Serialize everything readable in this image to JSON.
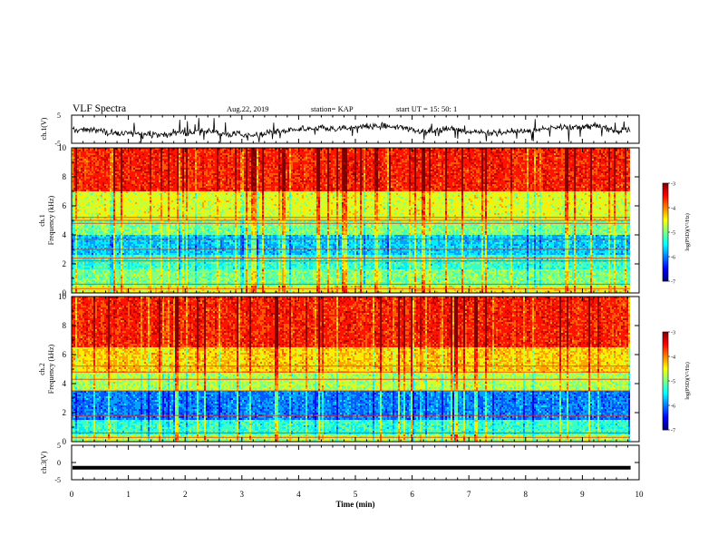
{
  "header": {
    "title": "VLF Spectra",
    "date": "Aug.22, 2019",
    "station": "station= KAP",
    "start": "start  UT =   15: 50: 1"
  },
  "chart_data": [
    {
      "type": "line",
      "name": "ch1-waveform",
      "ylabel": "ch.1(V)",
      "ylim": [
        -5,
        5
      ],
      "y_ticks": [
        "5",
        "-5"
      ],
      "xlim": [
        0,
        10
      ],
      "data_end_min": 9.85
    },
    {
      "type": "heatmap",
      "name": "ch1-spectrogram",
      "ylabel": "ch.1\nFrequency (kHz)",
      "ylim": [
        0,
        10
      ],
      "y_ticks": [
        "0",
        "2",
        "4",
        "6",
        "8",
        "10"
      ],
      "xlim": [
        0,
        10
      ],
      "colorbar": {
        "label": "log(PSD)(V²/Hz)",
        "range": [
          -7,
          -3
        ],
        "ticks": [
          "-3",
          "-4",
          "-5",
          "-6",
          "-7"
        ],
        "colormap": "jet"
      },
      "bands": [
        {
          "from_khz": 7.0,
          "to_khz": 10.0,
          "level": -3.6
        },
        {
          "from_khz": 5.0,
          "to_khz": 7.0,
          "level": -4.6
        },
        {
          "from_khz": 4.0,
          "to_khz": 5.0,
          "level": -5.0
        },
        {
          "from_khz": 2.6,
          "to_khz": 4.0,
          "level": -5.7
        },
        {
          "from_khz": 1.6,
          "to_khz": 2.6,
          "level": -5.3
        },
        {
          "from_khz": 0.5,
          "to_khz": 1.6,
          "level": -5.0
        },
        {
          "from_khz": 0.0,
          "to_khz": 0.5,
          "level": -4.5
        }
      ],
      "tones_khz": [
        0.3,
        0.6,
        2.2,
        2.4,
        3.0,
        3.7,
        4.8,
        5.0,
        5.2
      ]
    },
    {
      "type": "heatmap",
      "name": "ch2-spectrogram",
      "ylabel": "ch.2\nFrequency (kHz)",
      "ylim": [
        0,
        10
      ],
      "y_ticks": [
        "0",
        "2",
        "4",
        "6",
        "8",
        "10"
      ],
      "xlim": [
        0,
        10
      ],
      "colorbar": {
        "label": "log(PSD)(V²/Hz)",
        "range": [
          -7,
          -3
        ],
        "ticks": [
          "-3",
          "-4",
          "-5",
          "-6",
          "-7"
        ],
        "colormap": "jet"
      },
      "bands": [
        {
          "from_khz": 6.5,
          "to_khz": 10.0,
          "level": -3.6
        },
        {
          "from_khz": 4.8,
          "to_khz": 6.5,
          "level": -4.3
        },
        {
          "from_khz": 3.5,
          "to_khz": 4.8,
          "level": -4.8
        },
        {
          "from_khz": 1.5,
          "to_khz": 3.5,
          "level": -6.0
        },
        {
          "from_khz": 0.5,
          "to_khz": 1.5,
          "level": -5.3
        },
        {
          "from_khz": 0.0,
          "to_khz": 0.5,
          "level": -4.8
        }
      ],
      "tones_khz": [
        0.3,
        0.6,
        1.8,
        3.5,
        4.3,
        4.8,
        5.2
      ]
    },
    {
      "type": "line",
      "name": "ch3-waveform",
      "ylabel": "ch.3(V)",
      "ylim": [
        -5,
        5
      ],
      "y_ticks": [
        "5",
        "0",
        "-5"
      ],
      "xlim": [
        0,
        10
      ],
      "x_ticks": [
        "0",
        "1",
        "2",
        "3",
        "4",
        "5",
        "6",
        "7",
        "8",
        "9",
        "10"
      ],
      "xlabel": "Time (min)",
      "constant_v": -1.5,
      "data_end_min": 9.85
    }
  ],
  "colors": {
    "axis": "#000000",
    "trace": "#000000"
  }
}
